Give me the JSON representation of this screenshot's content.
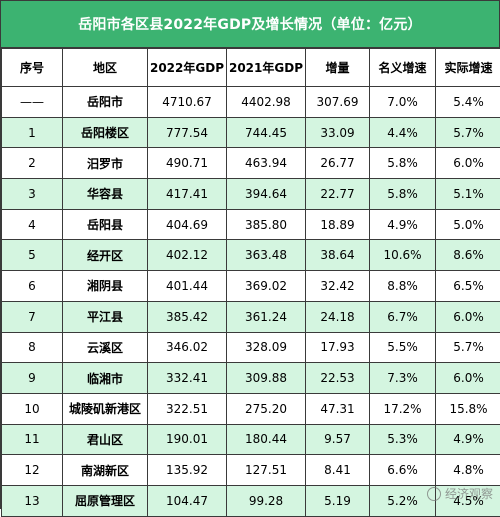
{
  "title": "岳阳市各区县2022年GDP及增长情况（单位：亿元）",
  "colors": {
    "header_green": "#3cb371",
    "stripe_green": "#d4f5e0",
    "border": "#3a3a3a"
  },
  "table": {
    "headers": [
      "序号",
      "地区",
      "2022年GDP",
      "2021年GDP",
      "增量",
      "名义增速",
      "实际增速"
    ],
    "rows": [
      [
        "——",
        "岳阳市",
        "4710.67",
        "4402.98",
        "307.69",
        "7.0%",
        "5.4%"
      ],
      [
        "1",
        "岳阳楼区",
        "777.54",
        "744.45",
        "33.09",
        "4.4%",
        "5.7%"
      ],
      [
        "2",
        "汨罗市",
        "490.71",
        "463.94",
        "26.77",
        "5.8%",
        "6.0%"
      ],
      [
        "3",
        "华容县",
        "417.41",
        "394.64",
        "22.77",
        "5.8%",
        "5.1%"
      ],
      [
        "4",
        "岳阳县",
        "404.69",
        "385.80",
        "18.89",
        "4.9%",
        "5.0%"
      ],
      [
        "5",
        "经开区",
        "402.12",
        "363.48",
        "38.64",
        "10.6%",
        "8.6%"
      ],
      [
        "6",
        "湘阴县",
        "401.44",
        "369.02",
        "32.42",
        "8.8%",
        "6.5%"
      ],
      [
        "7",
        "平江县",
        "385.42",
        "361.24",
        "24.18",
        "6.7%",
        "6.0%"
      ],
      [
        "8",
        "云溪区",
        "346.02",
        "328.09",
        "17.93",
        "5.5%",
        "5.7%"
      ],
      [
        "9",
        "临湘市",
        "332.41",
        "309.88",
        "22.53",
        "7.3%",
        "6.0%"
      ],
      [
        "10",
        "城陵矶新港区",
        "322.51",
        "275.20",
        "47.31",
        "17.2%",
        "15.8%"
      ],
      [
        "11",
        "君山区",
        "190.01",
        "180.44",
        "9.57",
        "5.3%",
        "4.9%"
      ],
      [
        "12",
        "南湖新区",
        "135.92",
        "127.51",
        "8.41",
        "6.6%",
        "4.8%"
      ],
      [
        "13",
        "屈原管理区",
        "104.47",
        "99.28",
        "5.19",
        "5.2%",
        "4.5%"
      ]
    ]
  },
  "watermark": {
    "text": "经济观察",
    "icon": "weibo-icon"
  }
}
